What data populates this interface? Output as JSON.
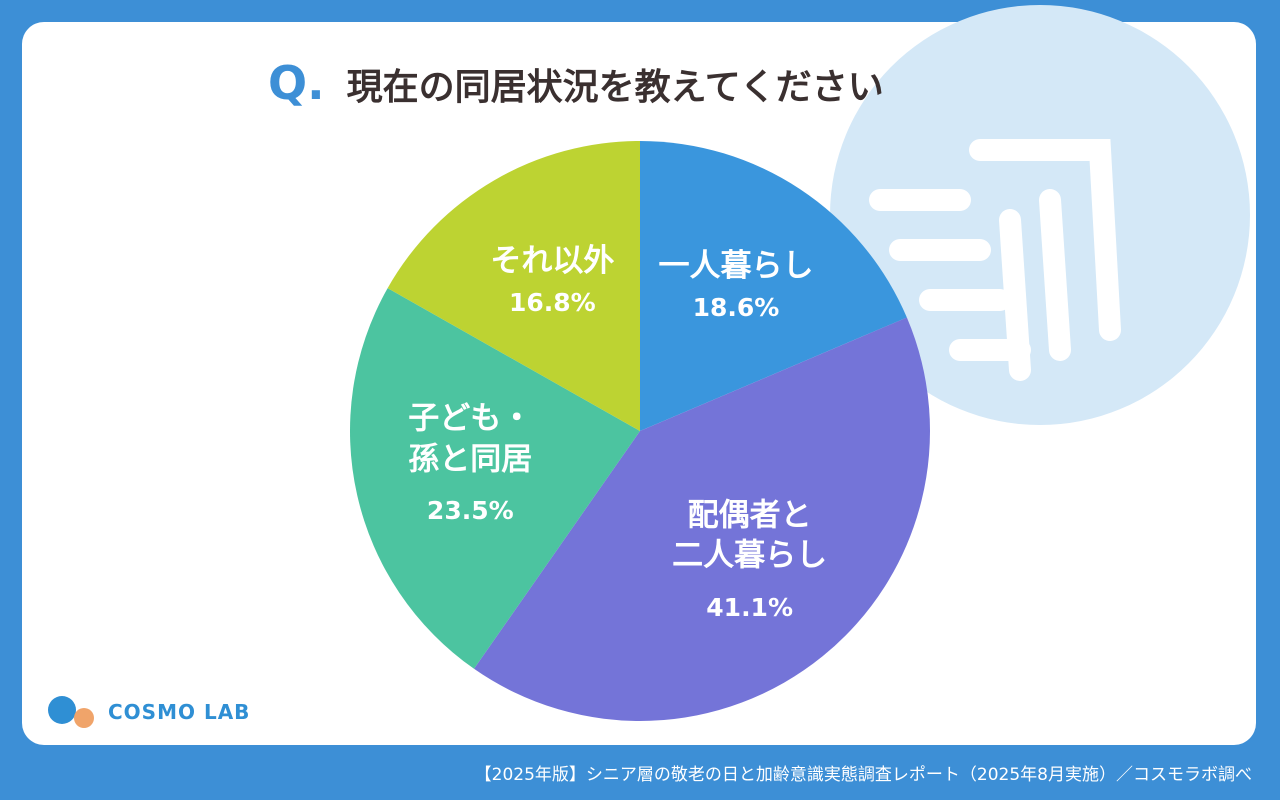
{
  "chart_data": {
    "type": "pie",
    "title_prefix": "Q.",
    "title": "現在の同居状況を教えてください",
    "categories": [
      "一人暮らし",
      "配偶者と\n二人暮らし",
      "子ども・\n孫と同居",
      "それ以外"
    ],
    "values": [
      18.6,
      41.1,
      23.5,
      16.8
    ],
    "value_labels": [
      "18.6%",
      "41.1%",
      "23.5%",
      "16.8%"
    ],
    "colors": [
      "#3a96dd",
      "#7474d8",
      "#4cc4a0",
      "#bdd332"
    ]
  },
  "logo": "COSMO LAB",
  "footer": "【2025年版】シニア層の敬老の日と加齢意識実態調査レポート（2025年8月実施）／コスモラボ調べ"
}
